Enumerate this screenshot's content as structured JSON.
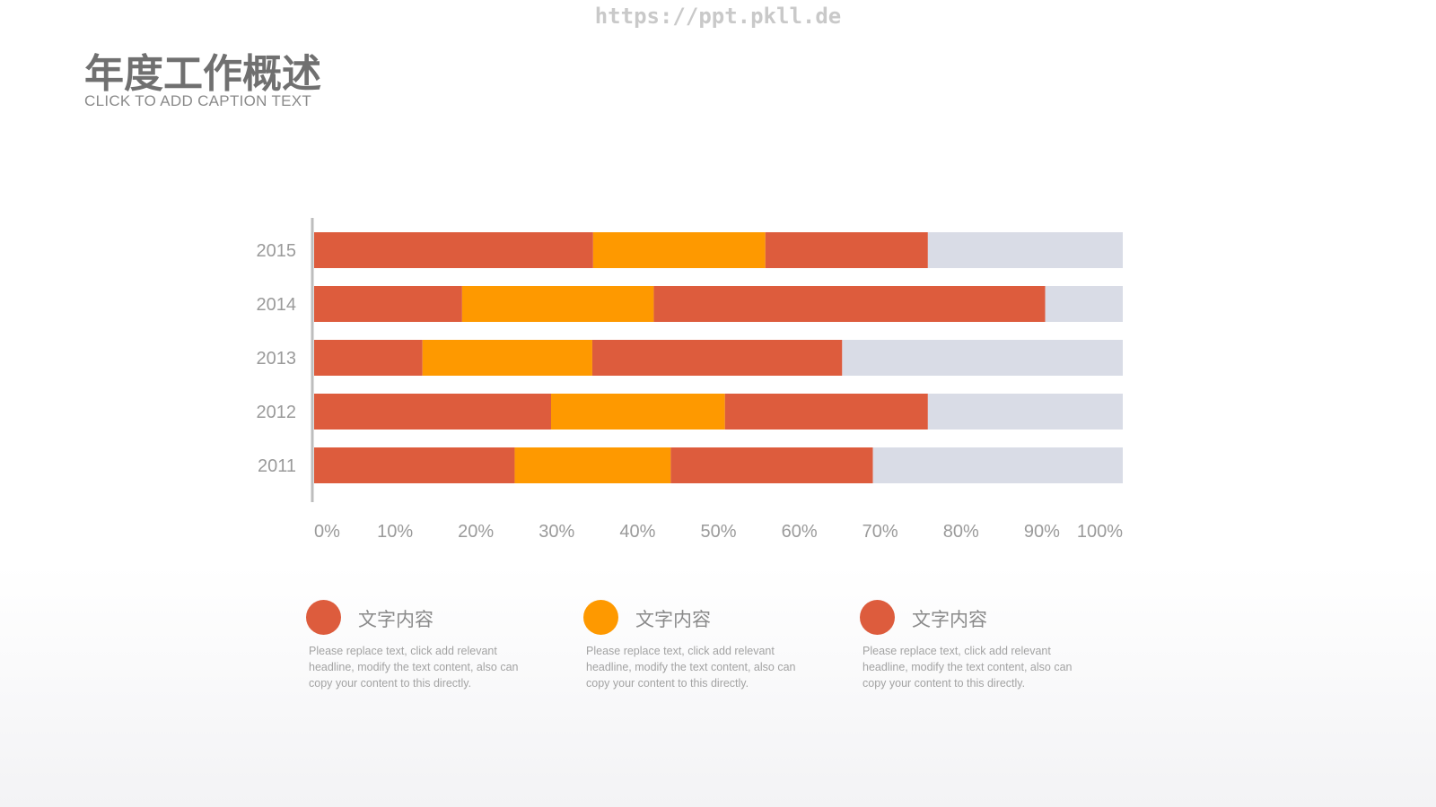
{
  "watermark": "https://ppt.pkll.de",
  "header": {
    "title": "年度工作概述",
    "subtitle": "CLICK TO ADD CAPTION TEXT"
  },
  "colors": {
    "red": "#dd5c3d",
    "orange": "#fe9900",
    "gray": "#d9dce6",
    "axis": "#bdbdbd",
    "label": "#9a9a9a"
  },
  "chart_data": {
    "type": "bar",
    "orientation": "horizontal",
    "stacked": true,
    "categories": [
      "2015",
      "2014",
      "2013",
      "2012",
      "2011"
    ],
    "series": [
      {
        "values": [
          34.5,
          18.3,
          13.4,
          29.3,
          24.8
        ],
        "color": "#dd5c3d"
      },
      {
        "values": [
          21.3,
          23.7,
          21.0,
          21.5,
          19.3
        ],
        "color": "#fe9900"
      },
      {
        "values": [
          20.1,
          48.4,
          30.9,
          25.1,
          25.0
        ],
        "color": "#dd5c3d"
      },
      {
        "values": [
          24.1,
          9.6,
          34.7,
          24.1,
          30.9
        ],
        "color": "#d9dce6"
      }
    ],
    "x_ticks": [
      "0%",
      "10%",
      "20%",
      "30%",
      "40%",
      "50%",
      "60%",
      "70%",
      "80%",
      "90%",
      "100%"
    ],
    "xlim": [
      0,
      100
    ],
    "grid": false
  },
  "legend": [
    {
      "title": "文字内容",
      "desc": "Please replace text, click add relevant headline, modify the text content, also can copy your content to this directly.",
      "color": "#dd5c3d"
    },
    {
      "title": "文字内容",
      "desc": "Please replace text, click add relevant headline, modify the text content, also can copy your content to this directly.",
      "color": "#fe9900"
    },
    {
      "title": "文字内容",
      "desc": "Please replace text, click add relevant headline, modify the text content, also can copy your content to this directly.",
      "color": "#dd5c3d"
    }
  ]
}
